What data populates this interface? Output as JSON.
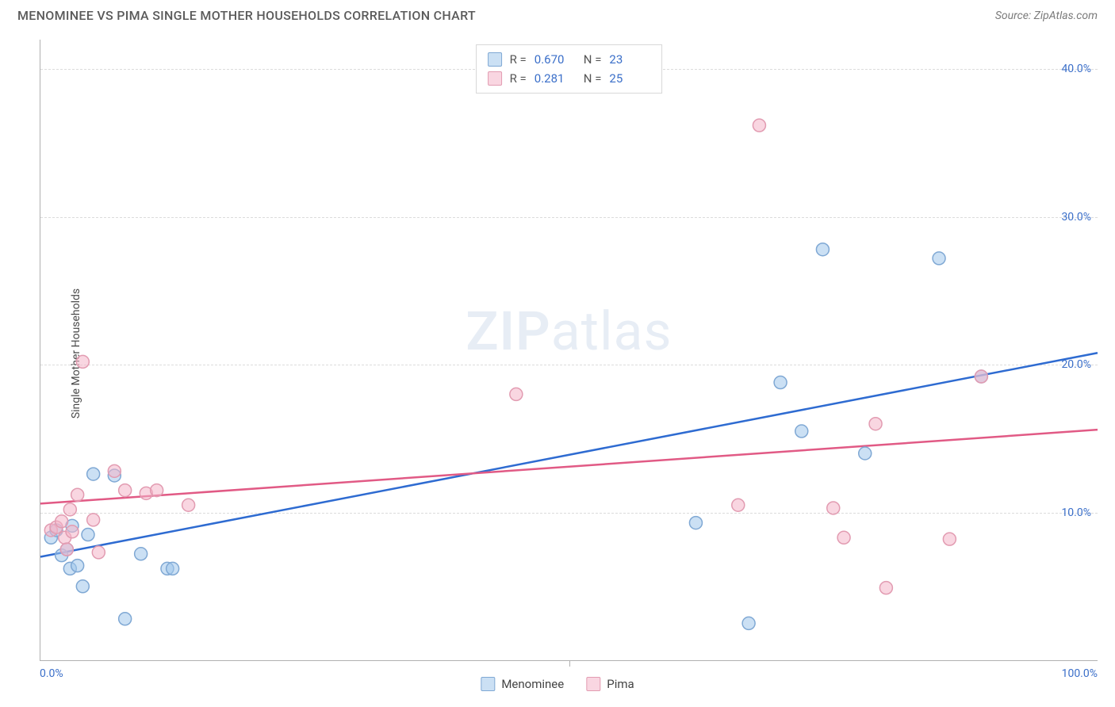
{
  "header": {
    "title": "MENOMINEE VS PIMA SINGLE MOTHER HOUSEHOLDS CORRELATION CHART",
    "source_prefix": "Source: ",
    "source_name": "ZipAtlas.com"
  },
  "chart": {
    "type": "scatter",
    "y_axis_label": "Single Mother Households",
    "watermark": "ZIPatlas",
    "background_color": "#ffffff",
    "grid_color": "#dcdcdc",
    "axis_color": "#b0b0b0",
    "tick_label_color": "#3b6fc9",
    "xlim": [
      0,
      100
    ],
    "ylim": [
      0,
      42
    ],
    "x_ticks": [
      0,
      50,
      100
    ],
    "x_tick_labels": [
      "0.0%",
      "",
      "100.0%"
    ],
    "y_gridlines": [
      10,
      20,
      30,
      40
    ],
    "y_tick_labels": [
      "10.0%",
      "20.0%",
      "30.0%",
      "40.0%"
    ],
    "marker_radius": 8,
    "marker_stroke_width": 1.5,
    "trend_line_width": 2.5,
    "series": [
      {
        "name": "Menominee",
        "fill_color": "rgba(160,198,235,0.55)",
        "stroke_color": "#7fa8d4",
        "line_color": "#2e6bd1",
        "R": "0.670",
        "N": "23",
        "points": [
          [
            1,
            8.3
          ],
          [
            1.5,
            8.8
          ],
          [
            2,
            7.1
          ],
          [
            2.5,
            7.5
          ],
          [
            2.8,
            6.2
          ],
          [
            3,
            9.1
          ],
          [
            3.5,
            6.4
          ],
          [
            4,
            5.0
          ],
          [
            4.5,
            8.5
          ],
          [
            5,
            12.6
          ],
          [
            7,
            12.5
          ],
          [
            8,
            2.8
          ],
          [
            9.5,
            7.2
          ],
          [
            12,
            6.2
          ],
          [
            12.5,
            6.2
          ],
          [
            62,
            9.3
          ],
          [
            67,
            2.5
          ],
          [
            70,
            18.8
          ],
          [
            72,
            15.5
          ],
          [
            74,
            27.8
          ],
          [
            78,
            14.0
          ],
          [
            85,
            27.2
          ],
          [
            89,
            19.2
          ]
        ],
        "trend": {
          "x1": 0,
          "y1": 7.0,
          "x2": 100,
          "y2": 20.8
        }
      },
      {
        "name": "Pima",
        "fill_color": "rgba(244,180,200,0.55)",
        "stroke_color": "#e29bb1",
        "line_color": "#e15a85",
        "R": "0.281",
        "N": "25",
        "points": [
          [
            1,
            8.8
          ],
          [
            1.5,
            9.0
          ],
          [
            2,
            9.4
          ],
          [
            2.3,
            8.3
          ],
          [
            2.5,
            7.5
          ],
          [
            2.8,
            10.2
          ],
          [
            3,
            8.7
          ],
          [
            3.5,
            11.2
          ],
          [
            4,
            20.2
          ],
          [
            5,
            9.5
          ],
          [
            5.5,
            7.3
          ],
          [
            7,
            12.8
          ],
          [
            8,
            11.5
          ],
          [
            10,
            11.3
          ],
          [
            11,
            11.5
          ],
          [
            14,
            10.5
          ],
          [
            45,
            18.0
          ],
          [
            66,
            10.5
          ],
          [
            68,
            36.2
          ],
          [
            75,
            10.3
          ],
          [
            76,
            8.3
          ],
          [
            79,
            16.0
          ],
          [
            80,
            4.9
          ],
          [
            86,
            8.2
          ],
          [
            89,
            19.2
          ]
        ],
        "trend": {
          "x1": 0,
          "y1": 10.6,
          "x2": 100,
          "y2": 15.6
        }
      }
    ]
  },
  "stats_box": {
    "rows": [
      {
        "swatch_fill": "rgba(160,198,235,0.55)",
        "swatch_stroke": "#7fa8d4",
        "r_label": "R =",
        "r_val": "0.670",
        "n_label": "N =",
        "n_val": "23"
      },
      {
        "swatch_fill": "rgba(244,180,200,0.55)",
        "swatch_stroke": "#e29bb1",
        "r_label": "R =",
        "r_val": " 0.281",
        "n_label": "N =",
        "n_val": "25"
      }
    ]
  },
  "legend": {
    "items": [
      {
        "label": "Menominee",
        "fill": "rgba(160,198,235,0.55)",
        "stroke": "#7fa8d4"
      },
      {
        "label": "Pima",
        "fill": "rgba(244,180,200,0.55)",
        "stroke": "#e29bb1"
      }
    ]
  }
}
